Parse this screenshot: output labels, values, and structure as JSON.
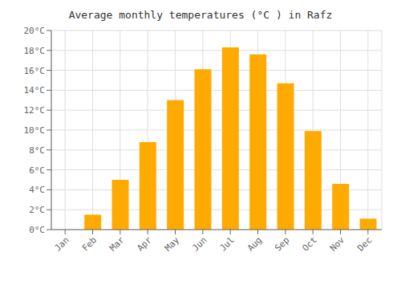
{
  "chart_data": {
    "type": "bar",
    "title": "Average monthly temperatures (°C ) in Rafz",
    "categories": [
      "Jan",
      "Feb",
      "Mar",
      "Apr",
      "May",
      "Jun",
      "Jul",
      "Aug",
      "Sep",
      "Oct",
      "Nov",
      "Dec"
    ],
    "values": [
      0,
      1.5,
      5.0,
      8.8,
      13.0,
      16.1,
      18.3,
      17.6,
      14.7,
      9.9,
      4.6,
      1.1
    ],
    "color": "#FFAA00",
    "ylim": [
      0,
      20
    ],
    "yticks": [
      {
        "value": 0,
        "label": "0°C"
      },
      {
        "value": 2,
        "label": "2°C"
      },
      {
        "value": 4,
        "label": "4°C"
      },
      {
        "value": 6,
        "label": "6°C"
      },
      {
        "value": 8,
        "label": "8°C"
      },
      {
        "value": 10,
        "label": "10°C"
      },
      {
        "value": 12,
        "label": "12°C"
      },
      {
        "value": 14,
        "label": "14°C"
      },
      {
        "value": 16,
        "label": "16°C"
      },
      {
        "value": 18,
        "label": "18°C"
      },
      {
        "value": 20,
        "label": "20°C"
      }
    ],
    "grid": true
  }
}
